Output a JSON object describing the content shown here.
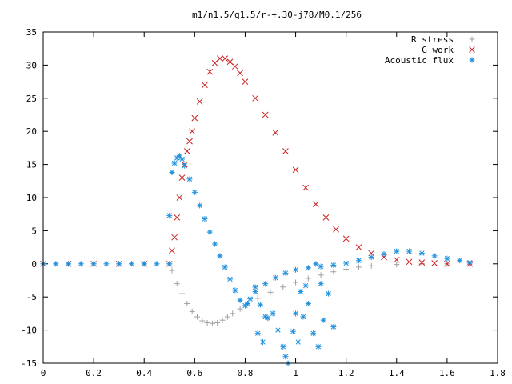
{
  "chart_data": {
    "type": "scatter",
    "title": "m1/n1.5/q1.5/r-+.30-j78/M0.1/256",
    "xlabel": "",
    "ylabel": "",
    "xlim": [
      0,
      1.8
    ],
    "ylim": [
      -15,
      35
    ],
    "x_ticks": [
      "0",
      "0.2",
      "0.4",
      "0.6",
      "0.8",
      "1",
      "1.2",
      "1.4",
      "1.6",
      "1.8"
    ],
    "y_ticks": [
      "-15",
      "-10",
      "-5",
      "0",
      "5",
      "10",
      "15",
      "20",
      "25",
      "30",
      "35"
    ],
    "grid": false,
    "legend_position": "top-right",
    "series": [
      {
        "name": "R stress",
        "marker": "plus",
        "color": "#a0a0a0",
        "points": [
          [
            0.0,
            0
          ],
          [
            0.1,
            0
          ],
          [
            0.2,
            0
          ],
          [
            0.3,
            0
          ],
          [
            0.4,
            0
          ],
          [
            0.5,
            0
          ],
          [
            0.51,
            -1.0
          ],
          [
            0.53,
            -3.0
          ],
          [
            0.55,
            -4.5
          ],
          [
            0.57,
            -6.0
          ],
          [
            0.59,
            -7.2
          ],
          [
            0.61,
            -8.0
          ],
          [
            0.63,
            -8.6
          ],
          [
            0.65,
            -8.9
          ],
          [
            0.67,
            -9.0
          ],
          [
            0.69,
            -8.9
          ],
          [
            0.71,
            -8.5
          ],
          [
            0.73,
            -8.0
          ],
          [
            0.75,
            -7.5
          ],
          [
            0.78,
            -6.8
          ],
          [
            0.81,
            -6.0
          ],
          [
            0.85,
            -5.2
          ],
          [
            0.9,
            -4.3
          ],
          [
            0.95,
            -3.5
          ],
          [
            1.0,
            -2.8
          ],
          [
            1.05,
            -2.2
          ],
          [
            1.1,
            -1.7
          ],
          [
            1.15,
            -1.2
          ],
          [
            1.2,
            -0.8
          ],
          [
            1.25,
            -0.5
          ],
          [
            1.3,
            -0.3
          ],
          [
            1.4,
            -0.1
          ],
          [
            1.5,
            0
          ],
          [
            1.6,
            0
          ],
          [
            1.69,
            0
          ]
        ]
      },
      {
        "name": "G work",
        "marker": "cross",
        "color": "#cc2222",
        "points": [
          [
            0.0,
            0
          ],
          [
            0.1,
            0
          ],
          [
            0.2,
            0
          ],
          [
            0.3,
            0
          ],
          [
            0.4,
            0
          ],
          [
            0.5,
            0
          ],
          [
            0.51,
            2.0
          ],
          [
            0.52,
            4.0
          ],
          [
            0.53,
            7.0
          ],
          [
            0.54,
            10.0
          ],
          [
            0.55,
            13.0
          ],
          [
            0.56,
            15.0
          ],
          [
            0.57,
            17.0
          ],
          [
            0.58,
            18.5
          ],
          [
            0.59,
            20.0
          ],
          [
            0.6,
            22.0
          ],
          [
            0.62,
            24.5
          ],
          [
            0.64,
            27.0
          ],
          [
            0.66,
            29.0
          ],
          [
            0.68,
            30.3
          ],
          [
            0.7,
            31.0
          ],
          [
            0.72,
            31.0
          ],
          [
            0.74,
            30.5
          ],
          [
            0.76,
            29.8
          ],
          [
            0.78,
            28.8
          ],
          [
            0.8,
            27.5
          ],
          [
            0.84,
            25.0
          ],
          [
            0.88,
            22.5
          ],
          [
            0.92,
            19.8
          ],
          [
            0.96,
            17.0
          ],
          [
            1.0,
            14.2
          ],
          [
            1.04,
            11.5
          ],
          [
            1.08,
            9.0
          ],
          [
            1.12,
            7.0
          ],
          [
            1.16,
            5.2
          ],
          [
            1.2,
            3.8
          ],
          [
            1.25,
            2.5
          ],
          [
            1.3,
            1.6
          ],
          [
            1.35,
            1.0
          ],
          [
            1.4,
            0.6
          ],
          [
            1.45,
            0.3
          ],
          [
            1.5,
            0.2
          ],
          [
            1.55,
            0.1
          ],
          [
            1.6,
            0
          ],
          [
            1.69,
            0
          ]
        ]
      },
      {
        "name": "Acoustic flux",
        "marker": "star",
        "color": "#1e90dd",
        "points": [
          [
            0.0,
            0
          ],
          [
            0.05,
            0
          ],
          [
            0.1,
            0
          ],
          [
            0.15,
            0
          ],
          [
            0.2,
            0
          ],
          [
            0.25,
            0
          ],
          [
            0.3,
            0
          ],
          [
            0.35,
            0
          ],
          [
            0.4,
            0
          ],
          [
            0.45,
            0
          ],
          [
            0.5,
            0
          ],
          [
            0.5,
            7.3
          ],
          [
            0.51,
            13.8
          ],
          [
            0.52,
            15.2
          ],
          [
            0.53,
            16.0
          ],
          [
            0.54,
            16.3
          ],
          [
            0.55,
            15.8
          ],
          [
            0.56,
            14.8
          ],
          [
            0.58,
            12.8
          ],
          [
            0.6,
            10.8
          ],
          [
            0.62,
            8.8
          ],
          [
            0.64,
            6.8
          ],
          [
            0.66,
            4.8
          ],
          [
            0.68,
            3.0
          ],
          [
            0.7,
            1.2
          ],
          [
            0.72,
            -0.5
          ],
          [
            0.74,
            -2.3
          ],
          [
            0.76,
            -4.0
          ],
          [
            0.78,
            -5.5
          ],
          [
            0.8,
            -6.3
          ],
          [
            0.81,
            -6.0
          ],
          [
            0.82,
            -5.3
          ],
          [
            0.84,
            -4.2
          ],
          [
            0.88,
            -3.0
          ],
          [
            0.92,
            -2.1
          ],
          [
            0.96,
            -1.4
          ],
          [
            1.0,
            -0.9
          ],
          [
            1.05,
            -0.6
          ],
          [
            1.1,
            -0.4
          ],
          [
            1.15,
            -0.2
          ],
          [
            1.2,
            0.1
          ],
          [
            1.25,
            0.5
          ],
          [
            1.3,
            1.0
          ],
          [
            1.35,
            1.5
          ],
          [
            1.4,
            1.9
          ],
          [
            1.45,
            1.9
          ],
          [
            1.5,
            1.6
          ],
          [
            1.55,
            1.2
          ],
          [
            1.6,
            0.8
          ],
          [
            1.65,
            0.5
          ],
          [
            1.69,
            0.2
          ],
          [
            0.85,
            -10.5
          ],
          [
            0.87,
            -11.8
          ],
          [
            0.89,
            -8.2
          ],
          [
            0.91,
            -7.5
          ],
          [
            0.93,
            -10.0
          ],
          [
            0.95,
            -12.5
          ],
          [
            0.96,
            -14.0
          ],
          [
            0.97,
            -15.0
          ],
          [
            0.99,
            -10.2
          ],
          [
            1.01,
            -11.8
          ],
          [
            1.03,
            -8.0
          ],
          [
            1.05,
            -6.0
          ],
          [
            1.07,
            -10.5
          ],
          [
            1.09,
            -12.5
          ],
          [
            1.11,
            -8.5
          ],
          [
            1.13,
            -4.5
          ],
          [
            1.15,
            -9.5
          ],
          [
            1.1,
            -3.0
          ],
          [
            1.08,
            0.0
          ],
          [
            0.84,
            -3.5
          ],
          [
            0.86,
            -6.2
          ],
          [
            0.88,
            -8.0
          ],
          [
            1.0,
            -7.5
          ],
          [
            1.02,
            -4.2
          ],
          [
            1.04,
            -3.3
          ]
        ]
      }
    ]
  }
}
